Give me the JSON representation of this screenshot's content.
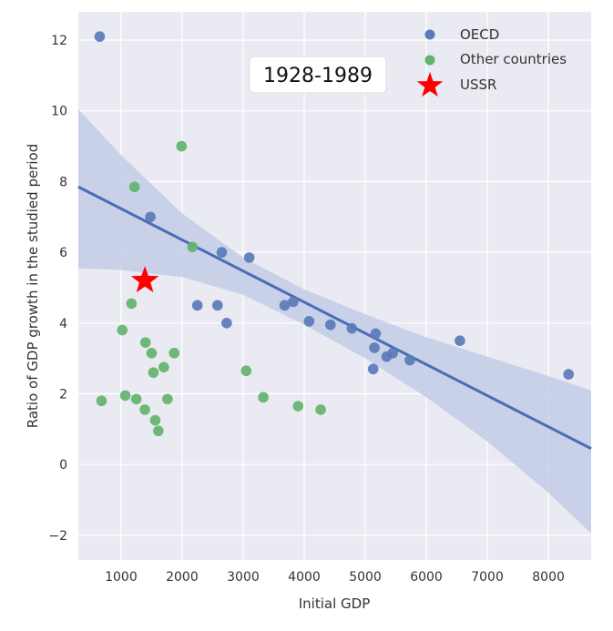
{
  "chart_data": {
    "type": "scatter",
    "title": "",
    "annotation": "1928-1989",
    "xlabel": "Initial GDP",
    "ylabel": "Ratio of GDP growth in the studied period",
    "xlim": [
      300,
      8700
    ],
    "ylim": [
      -2.7,
      12.8
    ],
    "xticks": [
      1000,
      2000,
      3000,
      4000,
      5000,
      6000,
      7000,
      8000
    ],
    "yticks": [
      -2,
      0,
      2,
      4,
      6,
      8,
      10,
      12
    ],
    "grid": true,
    "legend_position": "top-right",
    "colors": {
      "oecd": "#5a7ab8",
      "other": "#62b36f",
      "ussr": "#ff0000",
      "regression": "#4a6cb8",
      "band": "#c3cce6",
      "background": "#eaeaf2"
    },
    "series": [
      {
        "name": "OECD",
        "points": [
          [
            650,
            12.1
          ],
          [
            1480,
            7.0
          ],
          [
            2250,
            4.5
          ],
          [
            2580,
            4.5
          ],
          [
            2650,
            6.0
          ],
          [
            2730,
            4.0
          ],
          [
            3100,
            5.85
          ],
          [
            3680,
            4.5
          ],
          [
            3820,
            4.6
          ],
          [
            4080,
            4.05
          ],
          [
            4430,
            3.95
          ],
          [
            4780,
            3.85
          ],
          [
            5130,
            2.7
          ],
          [
            5150,
            3.3
          ],
          [
            5170,
            3.7
          ],
          [
            5350,
            3.05
          ],
          [
            5450,
            3.15
          ],
          [
            5730,
            2.95
          ],
          [
            6550,
            3.5
          ],
          [
            8330,
            2.55
          ]
        ]
      },
      {
        "name": "Other countries",
        "points": [
          [
            680,
            1.8
          ],
          [
            1020,
            3.8
          ],
          [
            1070,
            1.95
          ],
          [
            1170,
            4.55
          ],
          [
            1220,
            7.85
          ],
          [
            1250,
            1.85
          ],
          [
            1390,
            1.55
          ],
          [
            1400,
            3.45
          ],
          [
            1500,
            3.15
          ],
          [
            1530,
            2.6
          ],
          [
            1560,
            1.25
          ],
          [
            1610,
            0.95
          ],
          [
            1700,
            2.75
          ],
          [
            1760,
            1.85
          ],
          [
            1870,
            3.15
          ],
          [
            1990,
            9.0
          ],
          [
            2170,
            6.15
          ],
          [
            3050,
            2.65
          ],
          [
            3330,
            1.9
          ],
          [
            3900,
            1.65
          ],
          [
            4270,
            1.55
          ]
        ]
      },
      {
        "name": "USSR",
        "points": [
          [
            1390,
            5.2
          ]
        ]
      }
    ],
    "regression": {
      "line": [
        [
          300,
          7.85
        ],
        [
          8700,
          0.45
        ]
      ],
      "ci_upper": [
        [
          300,
          10.05
        ],
        [
          1000,
          8.75
        ],
        [
          2000,
          7.1
        ],
        [
          3000,
          5.85
        ],
        [
          4000,
          4.95
        ],
        [
          5000,
          4.25
        ],
        [
          6000,
          3.6
        ],
        [
          7000,
          3.05
        ],
        [
          8000,
          2.5
        ],
        [
          8700,
          2.1
        ]
      ],
      "ci_lower": [
        [
          300,
          5.55
        ],
        [
          1000,
          5.5
        ],
        [
          2000,
          5.3
        ],
        [
          3000,
          4.8
        ],
        [
          4000,
          3.95
        ],
        [
          5000,
          3.0
        ],
        [
          6000,
          1.9
        ],
        [
          7000,
          0.65
        ],
        [
          8000,
          -0.8
        ],
        [
          8700,
          -1.95
        ]
      ]
    }
  }
}
